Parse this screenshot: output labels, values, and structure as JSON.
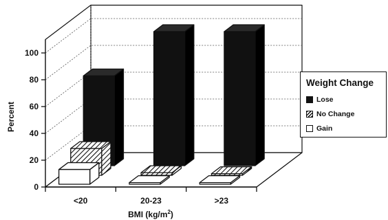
{
  "chart_data": {
    "type": "bar",
    "ylabel": "Percent",
    "xlabel": "BMI (kg/m²)",
    "xlabel_main": "BMI (kg/m",
    "xlabel_sup": "2",
    "xlabel_end": ")",
    "categories": [
      "<20",
      "20-23",
      ">23"
    ],
    "yticks": [
      "0",
      "20",
      "40",
      "60",
      "80",
      "100"
    ],
    "ylim": [
      0,
      110
    ],
    "grid": true,
    "legend": {
      "title": "Weight Change",
      "placement": "right"
    },
    "series": [
      {
        "name": "Lose",
        "values": [
          67,
          100,
          100
        ],
        "color": "#111111",
        "pattern": "solid"
      },
      {
        "name": "No Change",
        "values": [
          20,
          2,
          0
        ],
        "color": "#ffffff",
        "pattern": "hatched"
      },
      {
        "name": "Gain",
        "values": [
          11,
          0,
          0
        ],
        "color": "#ffffff",
        "pattern": "outline"
      }
    ]
  }
}
